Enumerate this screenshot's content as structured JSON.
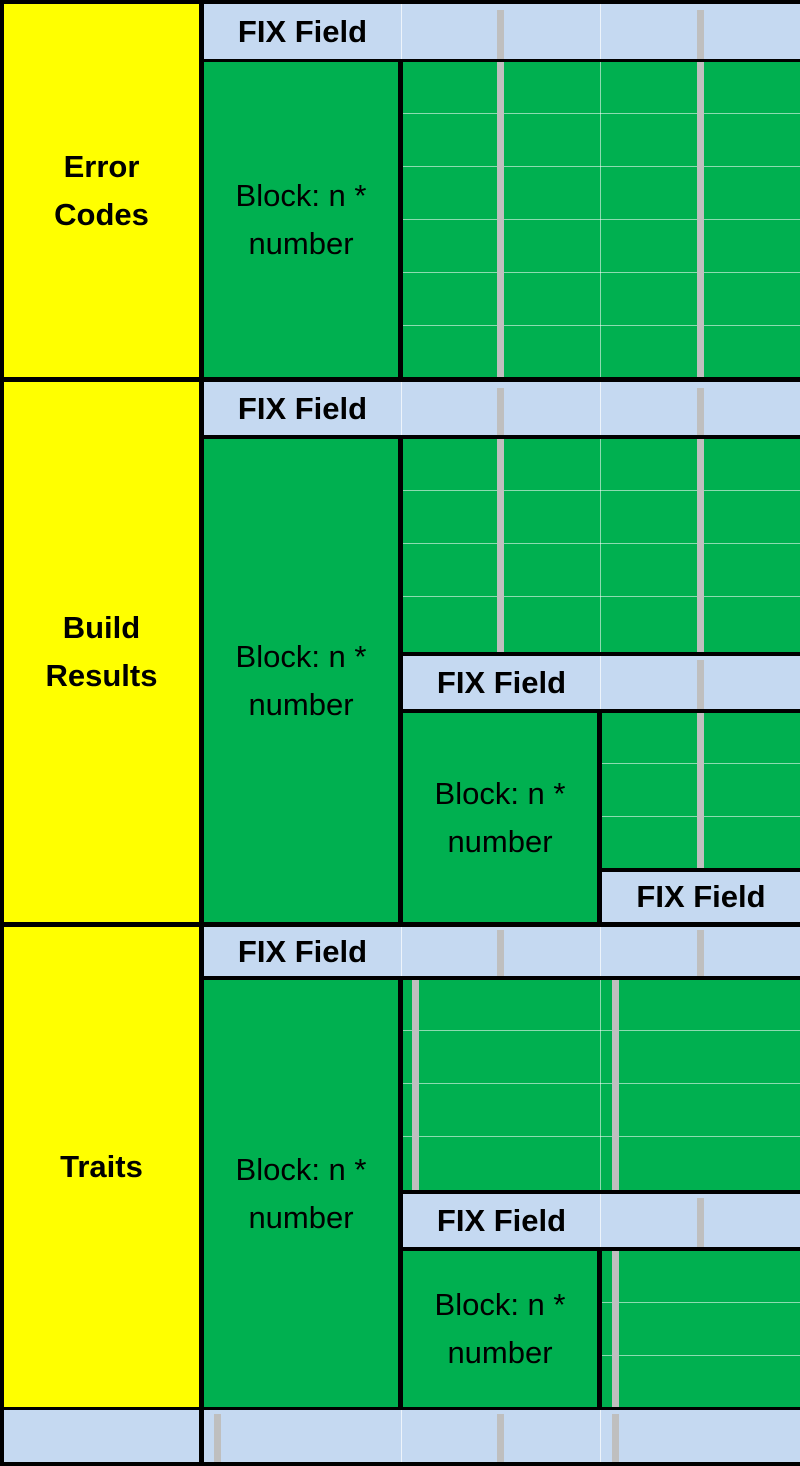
{
  "colors": {
    "section": "#ffff00",
    "block": "#00b050",
    "fix_field": "#c5d9f1",
    "border": "#000000",
    "separator": "#bfbfbf"
  },
  "sections": {
    "error_codes": {
      "label_line1": "Error",
      "label_line2": "Codes"
    },
    "build_results": {
      "label_line1": "Build",
      "label_line2": "Results"
    },
    "traits": {
      "label_line1": "Traits"
    }
  },
  "fix_field_label": "FIX Field",
  "block_label_line1": "Block: n *",
  "block_label_line2": "number"
}
